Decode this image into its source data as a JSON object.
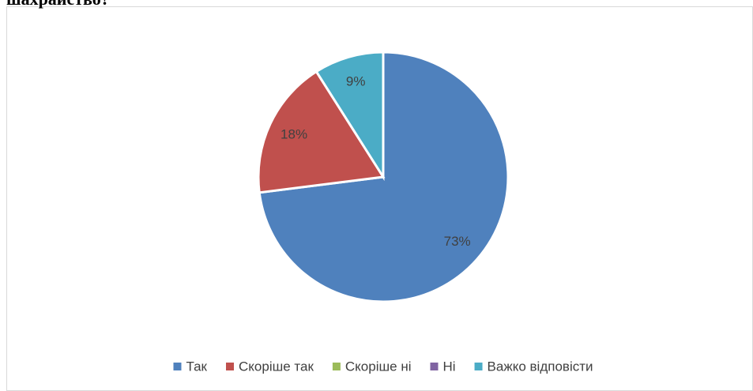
{
  "chart_data": {
    "type": "pie",
    "title": "шахрайство?",
    "categories": [
      "Так",
      "Скоріше так",
      "Скоріше ні",
      "Ні",
      "Важко відповісти"
    ],
    "values": [
      73,
      18,
      0,
      0,
      9
    ],
    "value_labels": [
      "73%",
      "18%",
      null,
      null,
      "9%"
    ],
    "colors": [
      "#4f81bd",
      "#c0504d",
      "#9bbb59",
      "#8064a2",
      "#4bacc6"
    ],
    "legend": "bottom"
  }
}
